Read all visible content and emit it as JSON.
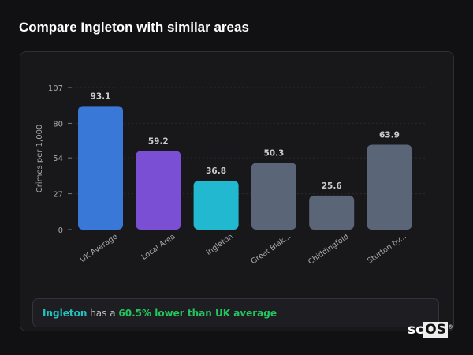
{
  "title": "Compare Ingleton with similar areas",
  "chart_data": {
    "type": "bar",
    "categories": [
      "UK Average",
      "Local Area",
      "Ingleton",
      "Great Blak...",
      "Chiddingfold",
      "Sturton by..."
    ],
    "values": [
      93.1,
      59.2,
      36.8,
      50.3,
      25.6,
      63.9
    ],
    "value_labels": [
      "93.1",
      "59.2",
      "36.8",
      "50.3",
      "25.6",
      "63.9"
    ],
    "colors": [
      "#3a78d8",
      "#7b4fd4",
      "#22b8cf",
      "#5b6578",
      "#5b6578",
      "#5b6578"
    ],
    "ylabel": "Crimes per 1,000",
    "yticks": [
      0,
      27,
      54,
      80,
      107
    ],
    "ylim": [
      0,
      107
    ],
    "grid": true
  },
  "summary": {
    "place": "Ingleton",
    "text": " has a ",
    "highlight": "60.5% lower than UK average"
  },
  "logo": {
    "text": "sc",
    "boxed": "OS",
    "mark": "®"
  }
}
